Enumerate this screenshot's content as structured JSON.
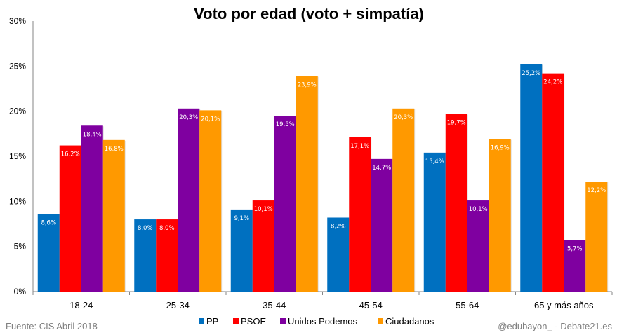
{
  "chart_data": {
    "type": "bar",
    "title": "Voto por edad (voto + simpatía)",
    "xlabel": "",
    "ylabel": "",
    "categories": [
      "18-24",
      "25-34",
      "35-44",
      "45-54",
      "55-64",
      "65 y más años"
    ],
    "series": [
      {
        "name": "PP",
        "color": "#0070C0",
        "values": [
          8.6,
          8.0,
          9.1,
          8.2,
          15.4,
          25.2
        ],
        "labels": [
          "8,6%",
          "8,0%",
          "9,1%",
          "8,2%",
          "15,4%",
          "25,2%"
        ]
      },
      {
        "name": "PSOE",
        "color": "#FF0000",
        "values": [
          16.2,
          8.0,
          10.1,
          17.1,
          19.7,
          24.2
        ],
        "labels": [
          "16,2%",
          "8,0%",
          "10,1%",
          "17,1%",
          "19,7%",
          "24,2%"
        ]
      },
      {
        "name": "Unidos Podemos",
        "color": "#7F00A0",
        "values": [
          18.4,
          20.3,
          19.5,
          14.7,
          10.1,
          5.7
        ],
        "labels": [
          "18,4%",
          "20,3%",
          "19,5%",
          "14,7%",
          "10,1%",
          "5,7%"
        ]
      },
      {
        "name": "Ciudadanos",
        "color": "#FF9900",
        "values": [
          16.8,
          20.1,
          23.9,
          20.3,
          16.9,
          12.2
        ],
        "labels": [
          "16,8%",
          "20,1%",
          "23,9%",
          "20,3%",
          "16,9%",
          "12,2%"
        ]
      }
    ],
    "ylim": [
      0,
      30
    ],
    "yticks": [
      0,
      5,
      10,
      15,
      20,
      25,
      30
    ],
    "ytick_labels": [
      "0%",
      "5%",
      "10%",
      "15%",
      "20%",
      "25%",
      "30%"
    ],
    "grid": false,
    "legend_position": "bottom-center",
    "data_labels": "inside-top"
  },
  "footer": {
    "source": "Fuente: CIS Abril 2018",
    "credit": "@edubayon_ - Debate21.es"
  }
}
